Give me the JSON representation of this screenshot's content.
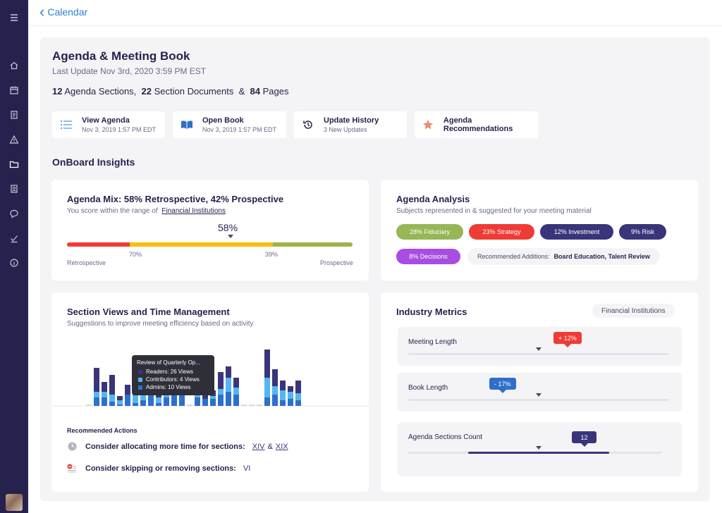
{
  "nav": {
    "back_label": "Calendar"
  },
  "header": {
    "title": "Agenda & Meeting Book",
    "last_update": "Last Update Nov 3rd, 2020 3:59 PM EST",
    "counts": {
      "sections_num": "12",
      "sections_label": "Agenda Sections,",
      "documents_num": "22",
      "documents_label": "Section Documents",
      "amp": "&",
      "pages_num": "84",
      "pages_label": "Pages"
    }
  },
  "quick_actions": [
    {
      "title": "View Agenda",
      "subtitle": "Nov 3, 2019 1:57 PM EDT",
      "icon": "list-icon"
    },
    {
      "title": "Open Book",
      "subtitle": "Nov 3, 2019 1:57 PM EDT",
      "icon": "book-icon"
    },
    {
      "title": "Update History",
      "subtitle": "3 New Updates",
      "icon": "history-icon"
    },
    {
      "title": "Agenda Recommendations",
      "subtitle": "",
      "icon": "star-icon"
    }
  ],
  "insights_title": "OnBoard Insights",
  "agenda_mix": {
    "title": "Agenda Mix: 58% Retrospective, 42% Prospective",
    "subtitle": "You score within the range of",
    "link": "Financial Institutions",
    "score": "58%",
    "score_fraction": 0.58,
    "tick_left": "70%",
    "tick_right": "39%",
    "label_left": "Retrospective",
    "label_right": "Prospective",
    "colors": {
      "red": "#ef3b36",
      "yellow": "#f7bd0f",
      "green": "#9fb24a"
    }
  },
  "agenda_analysis": {
    "title": "Agenda Analysis",
    "subtitle": "Subjects represented in & suggested for your meeting material",
    "pills": [
      {
        "label": "28%  Fiduciary",
        "color": "#97b656"
      },
      {
        "label": "23%  Strategy",
        "color": "#ef3b36"
      },
      {
        "label": "12%  Investment",
        "color": "#3a357a"
      },
      {
        "label": "9%  Risk",
        "color": "#3a357a"
      },
      {
        "label": "8%  Decisions",
        "color": "#a94de0"
      }
    ],
    "recommended_label": "Recommended Additions:",
    "recommended_value": "Board Education, Talent Review"
  },
  "section_views": {
    "title": "Section Views and Time Management",
    "subtitle": "Suggestions to improve meeting efficiency based on activity",
    "tooltip": {
      "title": "Review of Quarterly Op...",
      "readers": "Readers: 26 Views",
      "contributors": "Contributors: 4 Views",
      "admins": "Admins: 10 Views"
    },
    "colors": {
      "readers": "#3a357a",
      "contributors": "#52b6f0",
      "admins": "#2e6fcc"
    },
    "recommended_title": "Recommended Actions",
    "action1_text": "Consider allocating more time for sections:",
    "action1_link1": "XIV",
    "action1_amp": "&",
    "action1_link2": "XIX",
    "action2_text": "Consider skipping or removing sections:",
    "action2_link": "VI"
  },
  "chart_data": {
    "type": "bar",
    "series": [
      {
        "name": "Readers",
        "values": [
          0,
          17,
          7,
          14,
          3,
          7,
          12,
          22,
          5,
          7,
          7,
          14,
          14,
          0,
          19,
          8,
          4,
          12,
          8,
          7,
          0,
          0,
          0,
          20,
          12,
          7,
          4,
          9
        ]
      },
      {
        "name": "Contributors",
        "values": [
          0,
          4,
          4,
          5,
          3,
          0,
          8,
          6,
          3,
          4,
          10,
          6,
          0,
          0,
          7,
          0,
          2,
          4,
          10,
          5,
          0,
          0,
          0,
          14,
          6,
          7,
          5,
          5
        ]
      },
      {
        "name": "Admins",
        "values": [
          0,
          6,
          6,
          3,
          1,
          8,
          2,
          4,
          8,
          2,
          6,
          8,
          9,
          0,
          6,
          5,
          5,
          8,
          10,
          8,
          0,
          0,
          0,
          6,
          8,
          4,
          5,
          4
        ]
      }
    ]
  },
  "industry_metrics": {
    "title": "Industry Metrics",
    "tag": "Financial Institutions",
    "metrics": [
      {
        "label": "Meeting Length",
        "badge": "+ 12%",
        "badge_color": "#ef3b36",
        "value": 0.58,
        "average": 0.48
      },
      {
        "label": "Book Length",
        "badge": "- 17%",
        "badge_color": "#2e6fcc",
        "value": 0.36,
        "average": 0.48
      },
      {
        "label": "Agenda Sections Count",
        "badge": "12",
        "badge_color": "#3a357a",
        "value": 0.68,
        "average": 0.52,
        "fill_from": 0.23,
        "fill_to": 0.79
      }
    ]
  }
}
